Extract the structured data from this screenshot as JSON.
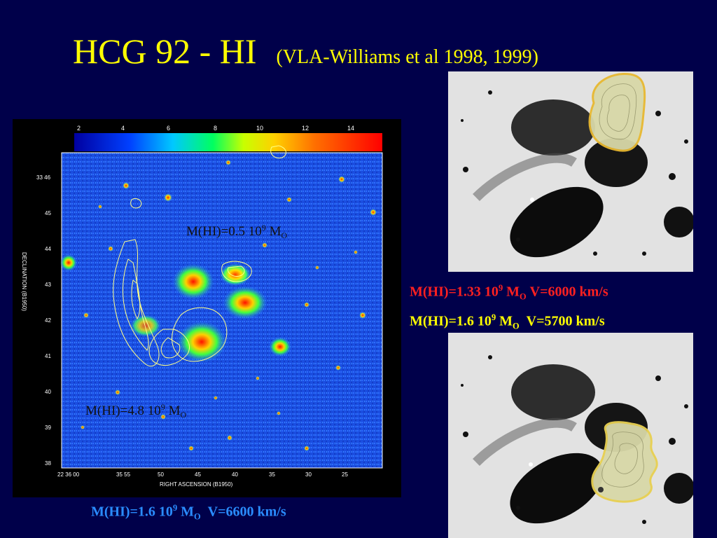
{
  "title": {
    "main": "HCG 92 - HI",
    "sub": "(VLA-Williams et al 1998, 1999)"
  },
  "colorbar": {
    "ticks": [
      "2",
      "4",
      "6",
      "8",
      "10",
      "12",
      "14"
    ]
  },
  "axes": {
    "dec_ticks": [
      "33 46",
      "45",
      "44",
      "43",
      "42",
      "41",
      "40",
      "39",
      "38"
    ],
    "ra_ticks": [
      "22 36 00",
      "35 55",
      "50",
      "45",
      "40",
      "35",
      "30",
      "25"
    ],
    "y_label": "DECLINATION (B1950)",
    "x_label": "RIGHT ASCENSION (B1950)"
  },
  "annotations": {
    "top_mass": {
      "prefix": "M(HI)=0.5 10",
      "exp": "9",
      "unit": " M",
      "unit_sub": "O"
    },
    "bottom_mass": {
      "prefix": "M(HI)=4.8 10",
      "exp": "9",
      "unit": " M",
      "unit_sub": "O"
    },
    "caption_bottom": {
      "prefix": "M(HI)=1.6 10",
      "exp": "9",
      "unit": " M",
      "unit_sub": "O",
      "velocity": "V=6600 km/s"
    },
    "caption_red": {
      "prefix": "M(HI)=1.33 10",
      "exp": "9",
      "unit": " M",
      "unit_sub": "O",
      "velocity": "V=6000 km/s"
    },
    "caption_yellow": {
      "prefix": "M(HI)=1.6 10",
      "exp": "9",
      "unit": " M",
      "unit_sub": "O",
      "velocity": "V=5700 km/s"
    }
  },
  "colors": {
    "background": "#00004a",
    "title": "#ffff00",
    "red_caption": "#ff2020",
    "yellow_caption": "#ffff00",
    "blue_caption": "#2a8cff",
    "contour": "#ffff88"
  }
}
